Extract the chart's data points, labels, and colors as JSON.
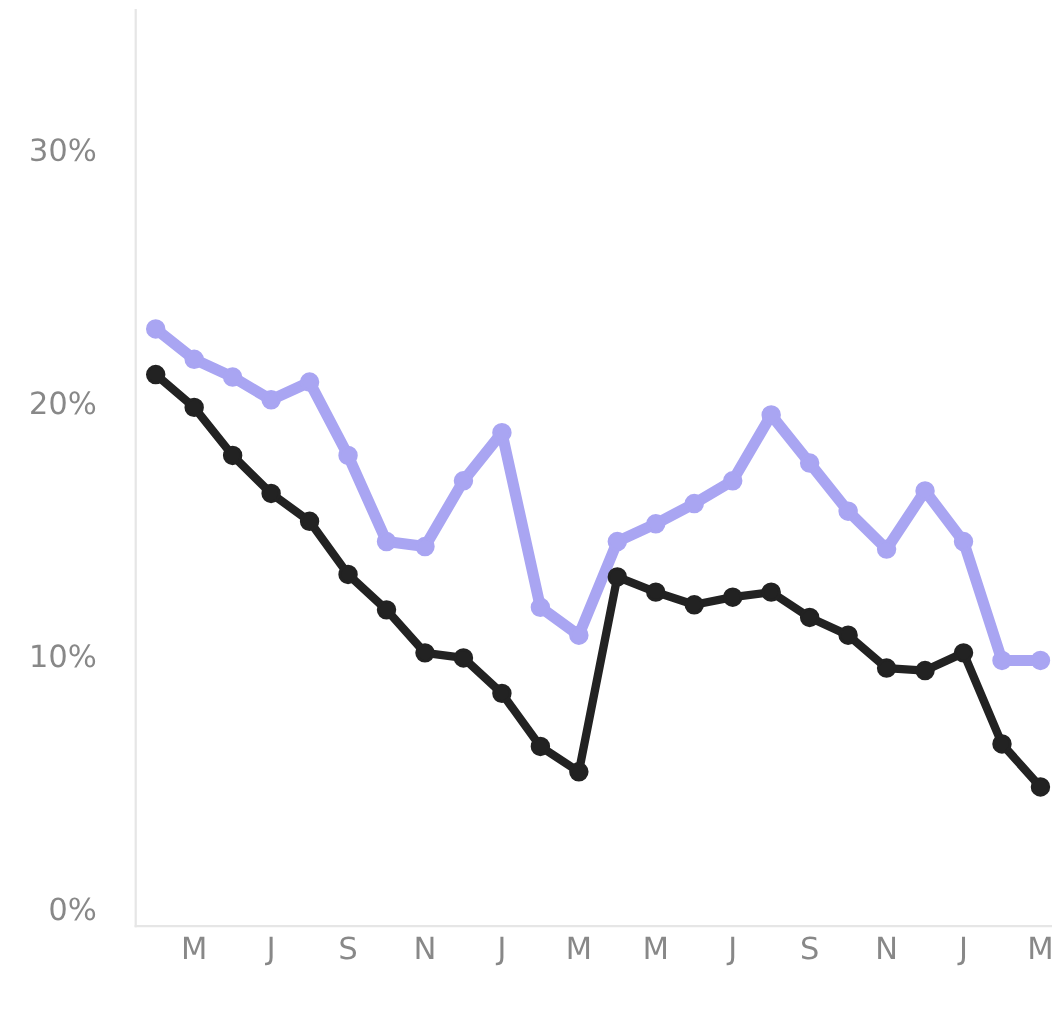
{
  "chart_data": {
    "type": "line",
    "categories": [
      null,
      "M",
      null,
      "J",
      null,
      "S",
      null,
      "N",
      null,
      "J",
      null,
      "M",
      null,
      "M",
      null,
      "J",
      null,
      "S",
      null,
      "N",
      null,
      "J",
      null,
      "M"
    ],
    "series": [
      {
        "color": "#a9a5f2",
        "values": [
          22.9,
          21.7,
          21.0,
          20.1,
          20.8,
          17.9,
          14.5,
          14.3,
          16.9,
          18.8,
          11.9,
          10.8,
          14.5,
          15.2,
          16.0,
          16.9,
          19.5,
          17.6,
          15.7,
          14.2,
          16.5,
          14.5,
          9.8,
          9.8
        ]
      },
      {
        "color": "#222222",
        "values": [
          21.1,
          19.8,
          17.9,
          16.4,
          15.3,
          13.2,
          11.8,
          10.1,
          9.9,
          8.5,
          6.4,
          5.4,
          13.1,
          12.5,
          12.0,
          12.3,
          12.5,
          11.5,
          10.8,
          9.5,
          9.4,
          10.1,
          6.5,
          4.8
        ]
      }
    ],
    "ylim": [
      -0.7,
      35.5
    ],
    "yticks": [
      {
        "value": 0,
        "label": "0%"
      },
      {
        "value": 10,
        "label": "10%"
      },
      {
        "value": 20,
        "label": "20%"
      },
      {
        "value": 30,
        "label": "30%"
      }
    ],
    "marker": "circle",
    "grid": false
  }
}
